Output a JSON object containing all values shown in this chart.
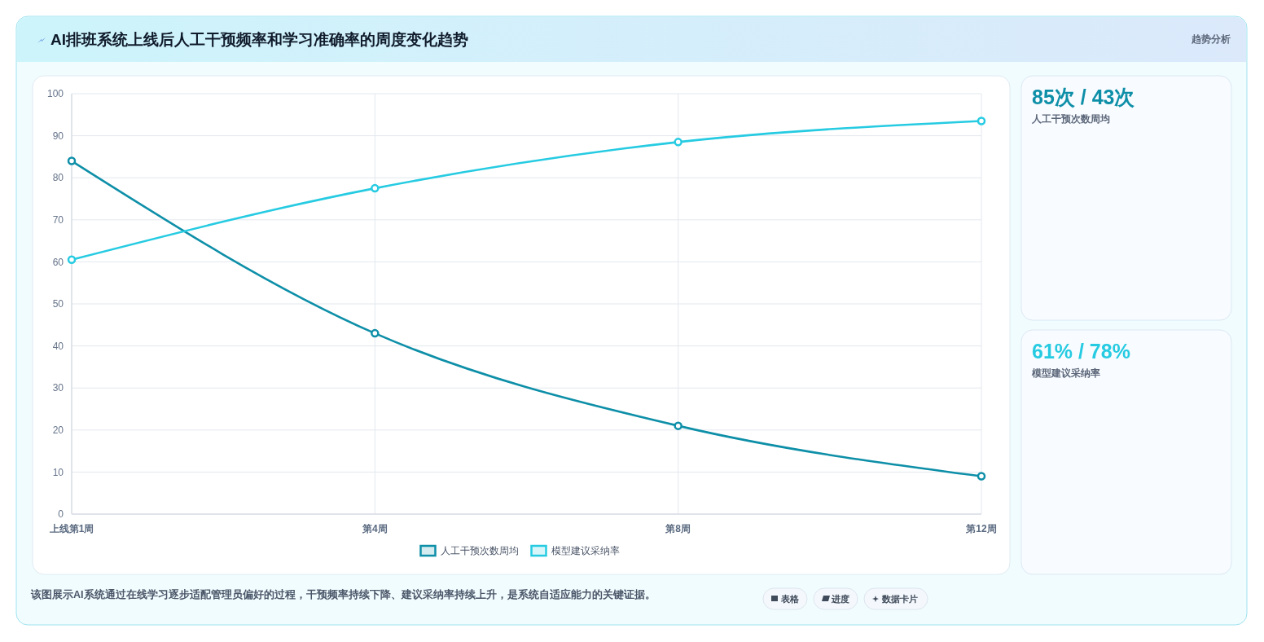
{
  "chart_data": [
    {
      "type": "line",
      "title": "AI排班系统上线后人工干预频率和学习准确率的周度变化趋势",
      "categories": [
        "上线第1周",
        "第4周",
        "第8周",
        "第12周"
      ],
      "series": [
        {
          "name": "人工干预次数周均",
          "color": "#0e8fa8",
          "values": [
            84,
            43,
            21,
            9
          ]
        },
        {
          "name": "模型建议采纳率",
          "color": "#26cbe2",
          "values": [
            60.5,
            77.5,
            88.5,
            93.5
          ]
        }
      ],
      "ylim": [
        0,
        100
      ],
      "yticks": [
        0,
        10,
        20,
        30,
        40,
        50,
        60,
        70,
        80,
        90,
        100
      ],
      "grid": true,
      "legend": "bottom",
      "marker": "circle",
      "line_style": "solid",
      "annotations": [
        "该图展示AI系统通过在线学习逐步适配管理员偏好的过程，干预频率持续下降、建议采纳率持续上升，是系统自适应能力的关键证据。",
        "表格",
        "进度",
        "数据卡片"
      ]
    },
    {
      "type": "other",
      "title": "85次 / 43次",
      "subtitle": "人工干预次数周均",
      "color": "#0e8fa8",
      "annotations": [
        "趋势分析"
      ]
    },
    {
      "type": "other",
      "title": "61% / 78%",
      "subtitle": "模型建议采纳率",
      "color": "#26cbe2"
    }
  ]
}
